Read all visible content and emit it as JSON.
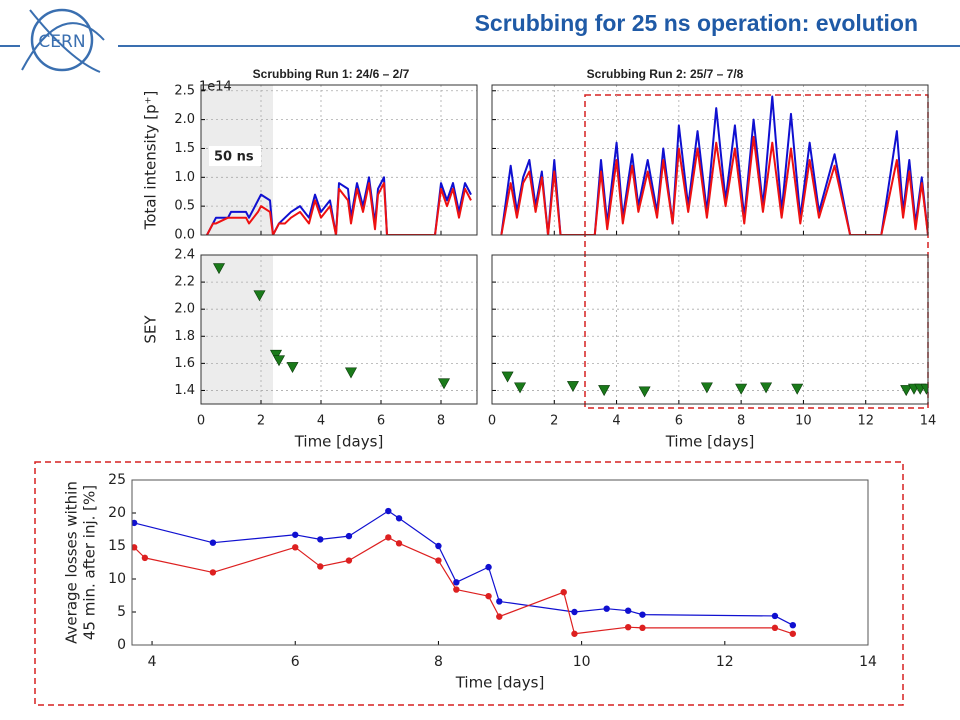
{
  "header": {
    "title": "Scrubbing for 25 ns operation: evolution",
    "logo": "CERN"
  },
  "chart_data": [
    {
      "type": "line",
      "title": "Scrubbing  Run 1: 24/6 – 2/7",
      "ylabel": "Total intensity [p⁺]",
      "multiplier": "1e14",
      "annotation": "50 ns",
      "shade": [
        0,
        2.4
      ],
      "grid": true,
      "xlim": [
        0,
        9.2
      ],
      "xticks": [
        0,
        2,
        4,
        6,
        8
      ],
      "ylim": [
        0,
        2.6
      ],
      "yticks": [
        {
          "value": 0,
          "label": "0.0"
        },
        0.5,
        {
          "value": 1,
          "label": "1.0"
        },
        1.5,
        {
          "value": 2,
          "label": "2.0"
        },
        2.5
      ],
      "x": [
        0.2,
        0.4,
        0.5,
        0.9,
        1.0,
        1.5,
        1.6,
        1.9,
        2.0,
        2.3,
        2.4,
        2.6,
        2.8,
        3.0,
        3.3,
        3.6,
        3.8,
        4.0,
        4.3,
        4.5,
        4.6,
        4.9,
        5.0,
        5.2,
        5.4,
        5.6,
        5.8,
        5.9,
        6.1,
        6.2,
        6.5,
        7.0,
        7.5,
        7.8,
        8.0,
        8.2,
        8.4,
        8.6,
        8.8,
        9.0
      ],
      "series": [
        {
          "color": "#1010d0",
          "values": [
            0,
            0.2,
            0.3,
            0.3,
            0.4,
            0.4,
            0.3,
            0.6,
            0.7,
            0.6,
            0,
            0.2,
            0.3,
            0.4,
            0.5,
            0.3,
            0.7,
            0.4,
            0.6,
            0,
            0.9,
            0.8,
            0.3,
            0.9,
            0.5,
            1.0,
            0.2,
            0.8,
            1.0,
            0,
            0,
            0,
            0,
            0,
            0.9,
            0.6,
            0.9,
            0.4,
            0.9,
            0.7
          ]
        },
        {
          "color": "#ee1111",
          "values": [
            0,
            0.2,
            0.2,
            0.3,
            0.3,
            0.3,
            0.2,
            0.4,
            0.5,
            0.4,
            0,
            0.2,
            0.2,
            0.3,
            0.4,
            0.2,
            0.6,
            0.3,
            0.5,
            0,
            0.8,
            0.6,
            0.2,
            0.8,
            0.4,
            0.9,
            0.1,
            0.7,
            0.9,
            0,
            0,
            0,
            0,
            0,
            0.8,
            0.5,
            0.8,
            0.3,
            0.8,
            0.6
          ]
        }
      ]
    },
    {
      "type": "line",
      "title": "Scrubbing  Run 2: 25/7 – 7/8",
      "grid": true,
      "xlim": [
        0,
        14
      ],
      "xticks": [
        0,
        2,
        4,
        6,
        8,
        10,
        12,
        14
      ],
      "ylim": [
        0,
        2.6
      ],
      "yticks": [
        0,
        0.5,
        1,
        1.5,
        2,
        2.5
      ],
      "x": [
        0.3,
        0.6,
        0.8,
        1.0,
        1.2,
        1.4,
        1.6,
        1.8,
        2.0,
        2.2,
        2.5,
        2.8,
        3.0,
        3.3,
        3.5,
        3.7,
        4.0,
        4.2,
        4.5,
        4.7,
        5.0,
        5.3,
        5.5,
        5.8,
        6.0,
        6.3,
        6.6,
        6.9,
        7.2,
        7.5,
        7.8,
        8.1,
        8.4,
        8.7,
        9.0,
        9.3,
        9.6,
        9.9,
        10.2,
        10.5,
        11.0,
        11.5,
        12.0,
        12.5,
        13.0,
        13.2,
        13.4,
        13.6,
        13.8,
        14.0
      ],
      "series": [
        {
          "color": "#1010d0",
          "values": [
            0,
            1.2,
            0.4,
            1.0,
            1.3,
            0.5,
            1.1,
            0,
            1.3,
            0,
            0,
            0,
            0,
            0,
            1.3,
            0.2,
            1.6,
            0.3,
            1.4,
            0.5,
            1.3,
            0.4,
            1.5,
            0.2,
            1.9,
            0.5,
            1.8,
            0.4,
            2.2,
            0.6,
            1.9,
            0.3,
            2.0,
            0.5,
            2.4,
            0.4,
            2.1,
            0.3,
            1.6,
            0.4,
            1.4,
            0,
            0,
            0,
            1.8,
            0.4,
            1.3,
            0.2,
            1.0,
            0
          ]
        },
        {
          "color": "#ee1111",
          "values": [
            0,
            0.9,
            0.3,
            0.9,
            1.1,
            0.4,
            1.0,
            0,
            1.1,
            0,
            0,
            0,
            0,
            0,
            1.1,
            0.1,
            1.3,
            0.2,
            1.2,
            0.4,
            1.1,
            0.3,
            1.3,
            0.2,
            1.5,
            0.4,
            1.5,
            0.3,
            1.6,
            0.5,
            1.5,
            0.2,
            1.7,
            0.4,
            1.6,
            0.3,
            1.5,
            0.2,
            1.3,
            0.3,
            1.2,
            0,
            0,
            0,
            1.3,
            0.3,
            1.1,
            0.1,
            0.9,
            0
          ]
        }
      ]
    },
    {
      "type": "scatter",
      "ylabel": "SEY",
      "xlabel": "Time [days]",
      "shade": [
        0,
        2.4
      ],
      "grid": true,
      "color": "#1a7a1a",
      "xlim": [
        0,
        9.2
      ],
      "xticks": [
        0,
        2,
        4,
        6,
        8
      ],
      "ylim": [
        1.3,
        2.4
      ],
      "yticks": [
        1.4,
        1.6,
        1.8,
        {
          "value": 2,
          "label": "2.0"
        },
        2.2,
        2.4
      ],
      "x": [
        0.6,
        1.95,
        2.5,
        2.6,
        3.05,
        5.0,
        8.1
      ],
      "values": [
        2.3,
        2.1,
        1.66,
        1.62,
        1.57,
        1.53,
        1.45
      ]
    },
    {
      "type": "scatter",
      "xlabel": "Time [days]",
      "grid": true,
      "color": "#1a7a1a",
      "xlim": [
        0,
        14
      ],
      "xticks": [
        0,
        2,
        4,
        6,
        8,
        10,
        12,
        14
      ],
      "ylim": [
        1.3,
        2.4
      ],
      "yticks": [
        1.4,
        1.6,
        1.8,
        2,
        2.2,
        2.4
      ],
      "x": [
        0.5,
        0.9,
        2.6,
        3.6,
        4.9,
        6.9,
        8.0,
        8.8,
        9.8,
        13.3,
        13.55,
        13.75,
        13.95
      ],
      "values": [
        1.5,
        1.42,
        1.43,
        1.4,
        1.39,
        1.42,
        1.41,
        1.42,
        1.41,
        1.4,
        1.41,
        1.41,
        1.41
      ]
    },
    {
      "type": "line",
      "markers": true,
      "ylabel": [
        "Average losses within",
        "45 min. after inj. [%]"
      ],
      "xlabel": "Time [days]",
      "xlim": [
        3.72,
        14
      ],
      "xticks": [
        4,
        6,
        8,
        10,
        12,
        14
      ],
      "ylim": [
        0,
        25
      ],
      "yticks": [
        0,
        5,
        10,
        15,
        20,
        25
      ],
      "series": [
        {
          "color": "#1010d0",
          "x": [
            3.75,
            4.85,
            6.0,
            6.35,
            6.75,
            7.3,
            7.45,
            8.0,
            8.25,
            8.7,
            8.85,
            9.9,
            10.35,
            10.65,
            10.85,
            12.7,
            12.95
          ],
          "values": [
            18.5,
            15.5,
            16.7,
            16,
            16.5,
            20.3,
            19.2,
            15,
            9.5,
            11.8,
            6.6,
            5,
            5.5,
            5.2,
            4.6,
            4.4,
            3
          ]
        },
        {
          "color": "#dd2020",
          "x": [
            3.75,
            3.9,
            4.85,
            6.0,
            6.35,
            6.75,
            7.3,
            7.45,
            8.0,
            8.25,
            8.7,
            8.85,
            9.75,
            9.9,
            10.65,
            10.85,
            12.7,
            12.95
          ],
          "values": [
            14.8,
            13.2,
            11,
            14.8,
            11.9,
            12.8,
            16.3,
            15.4,
            12.8,
            8.4,
            7.4,
            4.3,
            8,
            1.7,
            2.7,
            2.6,
            2.6,
            1.7
          ]
        }
      ]
    }
  ]
}
